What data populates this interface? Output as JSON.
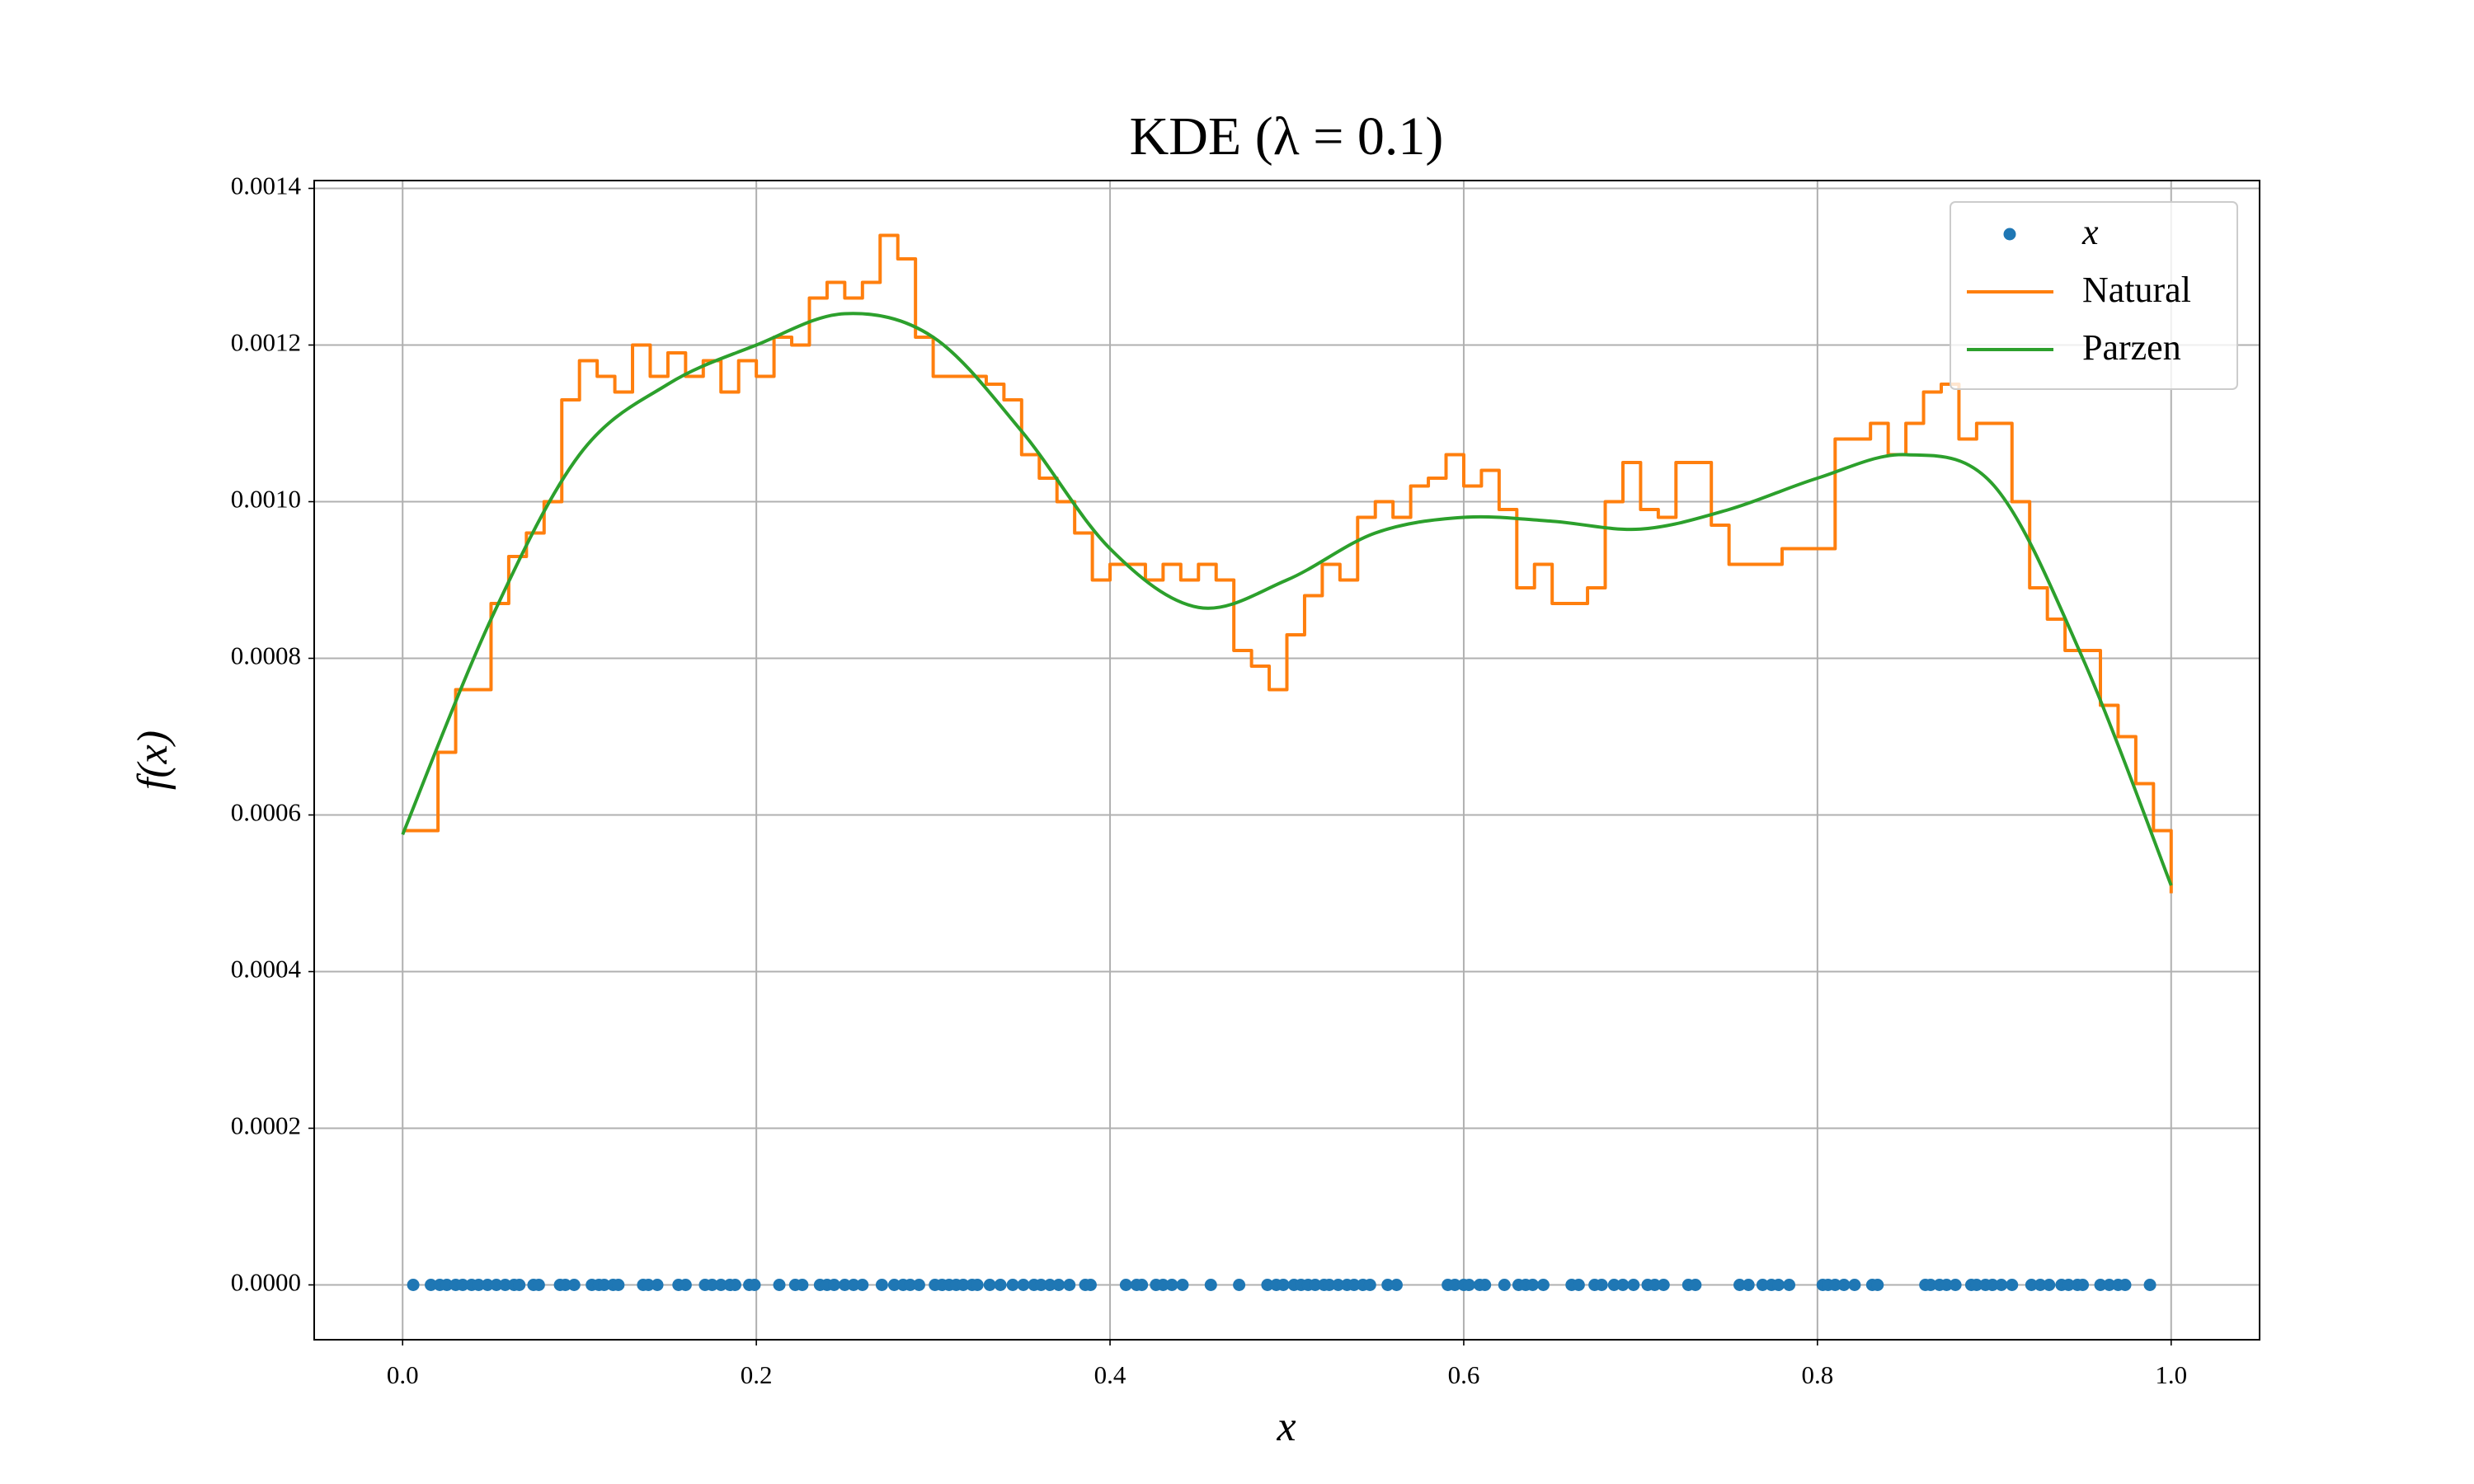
{
  "chart_data": {
    "type": "line",
    "title": "KDE (λ = 0.1)",
    "xlabel": "x",
    "ylabel": "f(x)",
    "xlim": [
      -0.05,
      1.05
    ],
    "ylim": [
      -7e-05,
      0.00141
    ],
    "xticks": [
      {
        "value": 0,
        "label": "0.0"
      },
      {
        "value": 0.2,
        "label": "0.2"
      },
      {
        "value": 0.4,
        "label": "0.4"
      },
      {
        "value": 0.6,
        "label": "0.6"
      },
      {
        "value": 0.8,
        "label": "0.8"
      },
      {
        "value": 1,
        "label": "1.0"
      }
    ],
    "yticks": [
      {
        "value": 0,
        "label": "0.0000"
      },
      {
        "value": 0.0002,
        "label": "0.0002"
      },
      {
        "value": 0.0004,
        "label": "0.0004"
      },
      {
        "value": 0.0006,
        "label": "0.0006"
      },
      {
        "value": 0.0008,
        "label": "0.0008"
      },
      {
        "value": 0.001,
        "label": "0.0010"
      },
      {
        "value": 0.0012,
        "label": "0.0012"
      },
      {
        "value": 0.0014,
        "label": "0.0014"
      }
    ],
    "grid": true,
    "legend": "upper right",
    "series": [
      {
        "name": "x",
        "color": "#1f77b4",
        "marker": "o",
        "linestyle": "none",
        "x": [
          0.006,
          0.016,
          0.021,
          0.025,
          0.03,
          0.034,
          0.039,
          0.043,
          0.048,
          0.053,
          0.058,
          0.063,
          0.066,
          0.074,
          0.077,
          0.089,
          0.092,
          0.097,
          0.107,
          0.111,
          0.114,
          0.119,
          0.122,
          0.136,
          0.139,
          0.144,
          0.156,
          0.16,
          0.171,
          0.175,
          0.18,
          0.185,
          0.188,
          0.196,
          0.199,
          0.213,
          0.222,
          0.226,
          0.236,
          0.24,
          0.244,
          0.25,
          0.255,
          0.26,
          0.271,
          0.278,
          0.283,
          0.287,
          0.292,
          0.301,
          0.305,
          0.309,
          0.313,
          0.317,
          0.322,
          0.325,
          0.332,
          0.338,
          0.345,
          0.351,
          0.357,
          0.361,
          0.366,
          0.371,
          0.377,
          0.386,
          0.389,
          0.409,
          0.415,
          0.418,
          0.426,
          0.43,
          0.435,
          0.441,
          0.457,
          0.473,
          0.489,
          0.494,
          0.498,
          0.504,
          0.508,
          0.512,
          0.516,
          0.521,
          0.524,
          0.529,
          0.534,
          0.538,
          0.543,
          0.547,
          0.557,
          0.562,
          0.591,
          0.595,
          0.6,
          0.603,
          0.609,
          0.612,
          0.623,
          0.631,
          0.635,
          0.639,
          0.645,
          0.661,
          0.665,
          0.674,
          0.678,
          0.685,
          0.69,
          0.696,
          0.704,
          0.708,
          0.713,
          0.727,
          0.731,
          0.756,
          0.761,
          0.769,
          0.774,
          0.778,
          0.784,
          0.803,
          0.806,
          0.81,
          0.815,
          0.821,
          0.831,
          0.834,
          0.861,
          0.864,
          0.869,
          0.873,
          0.878,
          0.887,
          0.89,
          0.895,
          0.899,
          0.904,
          0.91,
          0.921,
          0.926,
          0.931,
          0.938,
          0.942,
          0.947,
          0.95,
          0.96,
          0.965,
          0.97,
          0.974,
          0.988
        ],
        "values": [
          0,
          0,
          0,
          0,
          0,
          0,
          0,
          0,
          0,
          0,
          0,
          0,
          0,
          0,
          0,
          0,
          0,
          0,
          0,
          0,
          0,
          0,
          0,
          0,
          0,
          0,
          0,
          0,
          0,
          0,
          0,
          0,
          0,
          0,
          0,
          0,
          0,
          0,
          0,
          0,
          0,
          0,
          0,
          0,
          0,
          0,
          0,
          0,
          0,
          0,
          0,
          0,
          0,
          0,
          0,
          0,
          0,
          0,
          0,
          0,
          0,
          0,
          0,
          0,
          0,
          0,
          0,
          0,
          0,
          0,
          0,
          0,
          0,
          0,
          0,
          0,
          0,
          0,
          0,
          0,
          0,
          0,
          0,
          0,
          0,
          0,
          0,
          0,
          0,
          0,
          0,
          0,
          0,
          0,
          0,
          0,
          0,
          0,
          0,
          0,
          0,
          0,
          0,
          0,
          0,
          0,
          0,
          0,
          0,
          0,
          0,
          0,
          0,
          0,
          0,
          0,
          0,
          0,
          0,
          0,
          0,
          0,
          0,
          0,
          0,
          0,
          0,
          0,
          0,
          0,
          0,
          0,
          0,
          0,
          0,
          0,
          0,
          0,
          0,
          0,
          0,
          0,
          0,
          0,
          0,
          0,
          0,
          0,
          0,
          0,
          0
        ]
      },
      {
        "name": "Natural",
        "color": "#ff7f0e",
        "marker": "none",
        "linestyle": "steps",
        "x": [
          0,
          0.01,
          0.02,
          0.03,
          0.04,
          0.05,
          0.06,
          0.07,
          0.08,
          0.09,
          0.1,
          0.11,
          0.12,
          0.13,
          0.14,
          0.15,
          0.16,
          0.17,
          0.18,
          0.19,
          0.2,
          0.21,
          0.22,
          0.23,
          0.24,
          0.25,
          0.26,
          0.27,
          0.28,
          0.29,
          0.3,
          0.31,
          0.32,
          0.33,
          0.34,
          0.35,
          0.36,
          0.37,
          0.38,
          0.39,
          0.4,
          0.41,
          0.42,
          0.43,
          0.44,
          0.45,
          0.46,
          0.47,
          0.48,
          0.49,
          0.5,
          0.51,
          0.52,
          0.53,
          0.54,
          0.55,
          0.56,
          0.57,
          0.58,
          0.59,
          0.6,
          0.61,
          0.62,
          0.63,
          0.64,
          0.65,
          0.66,
          0.67,
          0.68,
          0.69,
          0.7,
          0.71,
          0.72,
          0.73,
          0.74,
          0.75,
          0.76,
          0.77,
          0.78,
          0.79,
          0.8,
          0.81,
          0.82,
          0.83,
          0.84,
          0.85,
          0.86,
          0.87,
          0.88,
          0.89,
          0.9,
          0.91,
          0.92,
          0.93,
          0.94,
          0.95,
          0.96,
          0.97,
          0.98,
          0.99,
          1
        ],
        "values": [
          0.00058,
          0.00058,
          0.00068,
          0.00076,
          0.00076,
          0.00087,
          0.00093,
          0.00096,
          0.001,
          0.00113,
          0.00118,
          0.00116,
          0.00114,
          0.0012,
          0.00116,
          0.00119,
          0.00116,
          0.00118,
          0.00114,
          0.00118,
          0.00116,
          0.00121,
          0.0012,
          0.00126,
          0.00128,
          0.00126,
          0.00128,
          0.00134,
          0.00131,
          0.00121,
          0.00116,
          0.00116,
          0.00116,
          0.00115,
          0.00113,
          0.00106,
          0.00103,
          0.001,
          0.00096,
          0.0009,
          0.00092,
          0.00092,
          0.0009,
          0.00092,
          0.0009,
          0.00092,
          0.0009,
          0.00081,
          0.00079,
          0.00076,
          0.00083,
          0.00088,
          0.00092,
          0.0009,
          0.00098,
          0.001,
          0.00098,
          0.00102,
          0.00103,
          0.00106,
          0.00102,
          0.00104,
          0.00099,
          0.00089,
          0.00092,
          0.00087,
          0.00087,
          0.00089,
          0.001,
          0.00105,
          0.00099,
          0.00098,
          0.00105,
          0.00105,
          0.00097,
          0.00092,
          0.00092,
          0.00092,
          0.00094,
          0.00094,
          0.00094,
          0.00108,
          0.00108,
          0.0011,
          0.00106,
          0.0011,
          0.00114,
          0.00115,
          0.00108,
          0.0011,
          0.0011,
          0.001,
          0.00089,
          0.00085,
          0.00081,
          0.00081,
          0.00074,
          0.0007,
          0.00064,
          0.00058,
          0.0005
        ]
      },
      {
        "name": "Parzen",
        "color": "#2ca02c",
        "marker": "none",
        "linestyle": "smooth",
        "x": [
          0,
          0.05,
          0.1,
          0.15,
          0.2,
          0.25,
          0.3,
          0.35,
          0.4,
          0.45,
          0.5,
          0.55,
          0.6,
          0.65,
          0.7,
          0.75,
          0.8,
          0.85,
          0.9,
          0.95,
          1
        ],
        "values": [
          0.000575,
          0.00085,
          0.00106,
          0.00115,
          0.0012,
          0.00124,
          0.00121,
          0.00109,
          0.00094,
          0.000865,
          0.0009,
          0.00096,
          0.00098,
          0.000975,
          0.000965,
          0.00099,
          0.00103,
          0.00106,
          0.00102,
          0.0008,
          0.00051
        ]
      }
    ]
  }
}
